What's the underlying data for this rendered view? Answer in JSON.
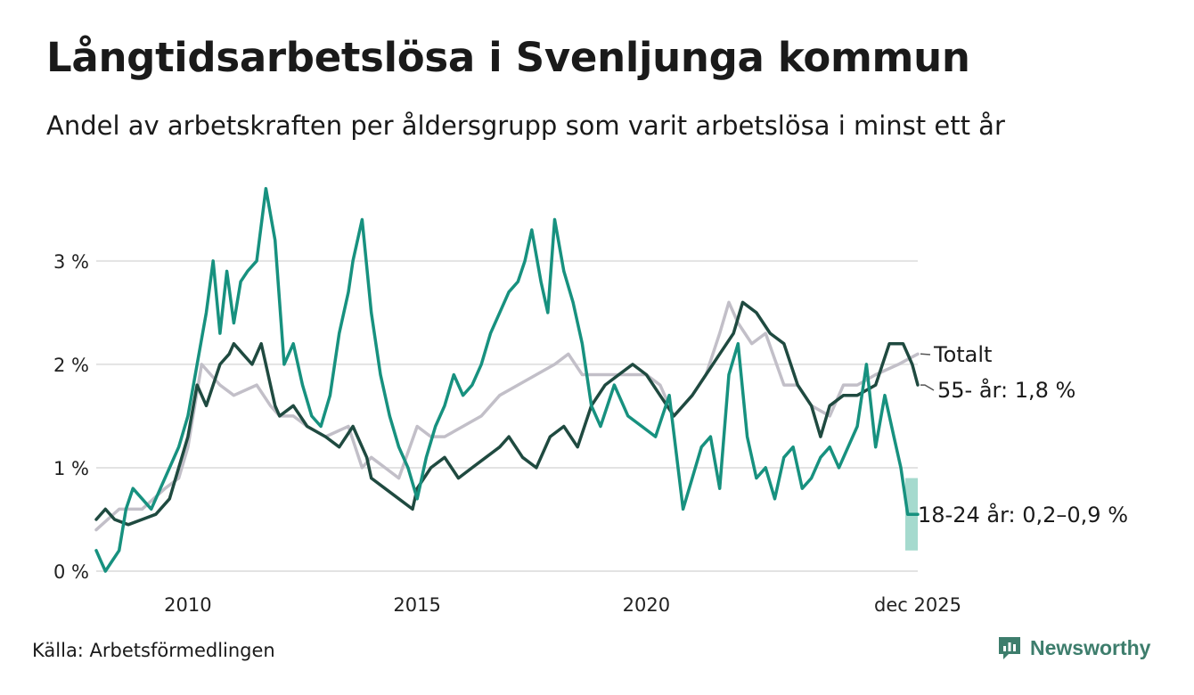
{
  "title": "Långtidsarbetslösa i Svenljunga kommun",
  "subtitle": "Andel av arbetskraften per åldersgrupp som varit arbetslösa i minst ett år",
  "source": "Källa: Arbetsförmedlingen",
  "brand": {
    "name": "Newsworthy",
    "icon": "newsworthy-logo-icon",
    "color": "#3d7d6c"
  },
  "chart_data": {
    "type": "line",
    "title": "Långtidsarbetslösa i Svenljunga kommun",
    "x_range": [
      2008.0,
      2025.92
    ],
    "ylim": [
      0,
      3.8
    ],
    "y_ticks": [
      0,
      1,
      2,
      3
    ],
    "y_tick_labels": [
      "0 %",
      "1 %",
      "2 %",
      "3 %"
    ],
    "x_ticks": [
      2010,
      2015,
      2020,
      2025.92
    ],
    "x_tick_labels": [
      "2010",
      "2015",
      "2020",
      "dec 2025"
    ],
    "grid": true,
    "series": [
      {
        "name": "Totalt",
        "label": "Totalt",
        "color": "#c2bfc8",
        "x": [
          2008.0,
          2008.5,
          2009.0,
          2009.5,
          2009.8,
          2010.0,
          2010.3,
          2010.7,
          2011.0,
          2011.5,
          2011.8,
          2012.0,
          2012.3,
          2012.6,
          2013.0,
          2013.5,
          2013.8,
          2014.0,
          2014.3,
          2014.6,
          2015.0,
          2015.3,
          2015.6,
          2016.0,
          2016.4,
          2016.8,
          2017.2,
          2017.6,
          2018.0,
          2018.3,
          2018.6,
          2019.0,
          2019.3,
          2019.6,
          2020.0,
          2020.3,
          2020.6,
          2021.0,
          2021.3,
          2021.6,
          2021.8,
          2022.0,
          2022.3,
          2022.6,
          2023.0,
          2023.3,
          2023.6,
          2024.0,
          2024.3,
          2024.6,
          2025.0,
          2025.5,
          2025.92
        ],
        "values": [
          0.4,
          0.6,
          0.6,
          0.8,
          0.9,
          1.2,
          2.0,
          1.8,
          1.7,
          1.8,
          1.6,
          1.5,
          1.5,
          1.4,
          1.3,
          1.4,
          1.0,
          1.1,
          1.0,
          0.9,
          1.4,
          1.3,
          1.3,
          1.4,
          1.5,
          1.7,
          1.8,
          1.9,
          2.0,
          2.1,
          1.9,
          1.9,
          1.9,
          1.9,
          1.9,
          1.8,
          1.5,
          1.7,
          1.9,
          2.3,
          2.6,
          2.4,
          2.2,
          2.3,
          1.8,
          1.8,
          1.6,
          1.5,
          1.8,
          1.8,
          1.9,
          2.0,
          2.1
        ],
        "end_label": "Totalt"
      },
      {
        "name": "55- år",
        "label": "55- år: 1,8 %",
        "color": "#1f4a40",
        "x": [
          2008.0,
          2008.2,
          2008.4,
          2008.7,
          2009.0,
          2009.3,
          2009.6,
          2009.8,
          2010.0,
          2010.2,
          2010.4,
          2010.7,
          2010.9,
          2011.0,
          2011.2,
          2011.4,
          2011.6,
          2011.9,
          2012.0,
          2012.3,
          2012.6,
          2013.0,
          2013.3,
          2013.6,
          2013.9,
          2014.0,
          2014.3,
          2014.6,
          2014.9,
          2015.0,
          2015.3,
          2015.6,
          2015.9,
          2016.2,
          2016.5,
          2016.8,
          2017.0,
          2017.3,
          2017.6,
          2017.9,
          2018.2,
          2018.5,
          2018.8,
          2019.1,
          2019.4,
          2019.7,
          2020.0,
          2020.3,
          2020.6,
          2021.0,
          2021.3,
          2021.6,
          2021.9,
          2022.1,
          2022.4,
          2022.7,
          2023.0,
          2023.3,
          2023.6,
          2023.8,
          2024.0,
          2024.3,
          2024.6,
          2025.0,
          2025.3,
          2025.6,
          2025.8,
          2025.92
        ],
        "values": [
          0.5,
          0.6,
          0.5,
          0.45,
          0.5,
          0.55,
          0.7,
          1.0,
          1.3,
          1.8,
          1.6,
          2.0,
          2.1,
          2.2,
          2.1,
          2.0,
          2.2,
          1.6,
          1.5,
          1.6,
          1.4,
          1.3,
          1.2,
          1.4,
          1.1,
          0.9,
          0.8,
          0.7,
          0.6,
          0.8,
          1.0,
          1.1,
          0.9,
          1.0,
          1.1,
          1.2,
          1.3,
          1.1,
          1.0,
          1.3,
          1.4,
          1.2,
          1.6,
          1.8,
          1.9,
          2.0,
          1.9,
          1.7,
          1.5,
          1.7,
          1.9,
          2.1,
          2.3,
          2.6,
          2.5,
          2.3,
          2.2,
          1.8,
          1.6,
          1.3,
          1.6,
          1.7,
          1.7,
          1.8,
          2.2,
          2.2,
          2.0,
          1.8
        ],
        "end_label": "55- år: 1,8 %"
      },
      {
        "name": "18-24 år",
        "label": "18-24 år: 0,2–0,9 %",
        "color": "#17917f",
        "x": [
          2008.0,
          2008.1,
          2008.2,
          2008.35,
          2008.5,
          2008.65,
          2008.8,
          2009.0,
          2009.2,
          2009.4,
          2009.6,
          2009.8,
          2010.0,
          2010.2,
          2010.4,
          2010.55,
          2010.7,
          2010.85,
          2011.0,
          2011.15,
          2011.3,
          2011.5,
          2011.7,
          2011.9,
          2012.1,
          2012.3,
          2012.5,
          2012.7,
          2012.9,
          2013.1,
          2013.3,
          2013.5,
          2013.6,
          2013.8,
          2014.0,
          2014.2,
          2014.4,
          2014.6,
          2014.8,
          2015.0,
          2015.2,
          2015.4,
          2015.6,
          2015.8,
          2016.0,
          2016.2,
          2016.4,
          2016.6,
          2016.8,
          2017.0,
          2017.2,
          2017.35,
          2017.5,
          2017.7,
          2017.85,
          2018.0,
          2018.2,
          2018.4,
          2018.6,
          2018.8,
          2019.0,
          2019.3,
          2019.6,
          2019.9,
          2020.2,
          2020.5,
          2020.8,
          2021.0,
          2021.2,
          2021.4,
          2021.6,
          2021.8,
          2022.0,
          2022.2,
          2022.4,
          2022.6,
          2022.8,
          2023.0,
          2023.2,
          2023.4,
          2023.6,
          2023.8,
          2024.0,
          2024.2,
          2024.4,
          2024.6,
          2024.8,
          2025.0,
          2025.2,
          2025.4,
          2025.55,
          2025.7,
          2025.92
        ],
        "values": [
          0.2,
          0.1,
          0.0,
          0.1,
          0.2,
          0.6,
          0.8,
          0.7,
          0.6,
          0.8,
          1.0,
          1.2,
          1.5,
          2.0,
          2.5,
          3.0,
          2.3,
          2.9,
          2.4,
          2.8,
          2.9,
          3.0,
          3.7,
          3.2,
          2.0,
          2.2,
          1.8,
          1.5,
          1.4,
          1.7,
          2.3,
          2.7,
          3.0,
          3.4,
          2.5,
          1.9,
          1.5,
          1.2,
          1.0,
          0.7,
          1.1,
          1.4,
          1.6,
          1.9,
          1.7,
          1.8,
          2.0,
          2.3,
          2.5,
          2.7,
          2.8,
          3.0,
          3.3,
          2.8,
          2.5,
          3.4,
          2.9,
          2.6,
          2.2,
          1.6,
          1.4,
          1.8,
          1.5,
          1.4,
          1.3,
          1.7,
          0.6,
          0.9,
          1.2,
          1.3,
          0.8,
          1.9,
          2.2,
          1.3,
          0.9,
          1.0,
          0.7,
          1.1,
          1.2,
          0.8,
          0.9,
          1.1,
          1.2,
          1.0,
          1.2,
          1.4,
          2.0,
          1.2,
          1.7,
          1.3,
          1.0,
          0.55,
          0.55
        ],
        "range_end": [
          0.2,
          0.9
        ],
        "end_label": "18-24 år: 0,2–0,9 %"
      }
    ]
  }
}
